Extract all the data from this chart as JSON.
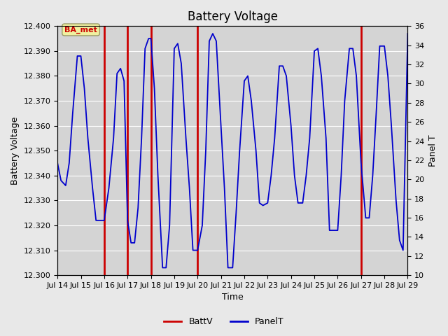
{
  "title": "Battery Voltage",
  "xlabel": "Time",
  "ylabel_left": "Battery Voltage",
  "ylabel_right": "Panel T",
  "ylim_left": [
    12.3,
    12.4
  ],
  "ylim_right": [
    10,
    36
  ],
  "yticks_left": [
    12.3,
    12.31,
    12.32,
    12.33,
    12.34,
    12.35,
    12.36,
    12.37,
    12.38,
    12.39,
    12.4
  ],
  "yticks_right": [
    10,
    12,
    14,
    16,
    18,
    20,
    22,
    24,
    26,
    28,
    30,
    32,
    34,
    36
  ],
  "xtick_labels": [
    "Jul 14",
    "Jul 15",
    "Jul 16",
    "Jul 17",
    "Jul 18",
    "Jul 19",
    "Jul 20",
    "Jul 21",
    "Jul 22",
    "Jul 23",
    "Jul 24",
    "Jul 25",
    "Jul 26",
    "Jul 27",
    "Jul 28",
    "Jul 29"
  ],
  "xlim": [
    0,
    15
  ],
  "red_vlines": [
    2,
    3,
    4,
    6,
    13
  ],
  "background_color": "#e8e8e8",
  "plot_bg_color": "#d4d4d4",
  "legend_label_batt": "BattV",
  "legend_label_panel": "PanelT",
  "annotation_text": "BA_met",
  "blue_line_color": "#0000cc",
  "red_line_color": "#cc0000",
  "title_fontsize": 12,
  "axis_label_fontsize": 9,
  "tick_fontsize": 8,
  "panel_t_x": [
    0.0,
    0.15,
    0.35,
    0.5,
    0.65,
    0.85,
    1.0,
    1.15,
    1.3,
    1.5,
    1.65,
    1.85,
    2.0,
    2.2,
    2.4,
    2.55,
    2.7,
    2.85,
    3.0,
    3.15,
    3.3,
    3.45,
    3.6,
    3.75,
    3.9,
    4.0,
    4.15,
    4.3,
    4.5,
    4.65,
    4.8,
    5.0,
    5.15,
    5.3,
    5.5,
    5.65,
    5.8,
    6.0,
    6.2,
    6.35,
    6.5,
    6.65,
    6.8,
    7.0,
    7.15,
    7.3,
    7.5,
    7.65,
    7.8,
    8.0,
    8.15,
    8.3,
    8.5,
    8.65,
    8.8,
    9.0,
    9.15,
    9.3,
    9.5,
    9.65,
    9.8,
    10.0,
    10.15,
    10.3,
    10.5,
    10.65,
    10.8,
    11.0,
    11.15,
    11.3,
    11.5,
    11.65,
    11.8,
    12.0,
    12.15,
    12.3,
    12.5,
    12.65,
    12.8,
    13.0,
    13.2,
    13.35,
    13.5,
    13.65,
    13.8,
    14.0,
    14.15,
    14.3,
    14.5,
    14.65,
    14.8,
    15.0
  ],
  "panel_t_y": [
    12.345,
    12.338,
    12.336,
    12.345,
    12.365,
    12.388,
    12.388,
    12.375,
    12.355,
    12.335,
    12.322,
    12.322,
    12.322,
    12.335,
    12.355,
    12.381,
    12.383,
    12.378,
    12.322,
    12.313,
    12.313,
    12.327,
    12.355,
    12.391,
    12.395,
    12.395,
    12.375,
    12.34,
    12.303,
    12.303,
    12.32,
    12.391,
    12.393,
    12.385,
    12.355,
    12.335,
    12.31,
    12.31,
    12.32,
    12.35,
    12.394,
    12.397,
    12.394,
    12.36,
    12.335,
    12.303,
    12.303,
    12.325,
    12.35,
    12.378,
    12.38,
    12.37,
    12.35,
    12.329,
    12.328,
    12.329,
    12.34,
    12.355,
    12.384,
    12.384,
    12.38,
    12.36,
    12.34,
    12.329,
    12.329,
    12.34,
    12.355,
    12.39,
    12.391,
    12.38,
    12.355,
    12.318,
    12.318,
    12.318,
    12.34,
    12.37,
    12.391,
    12.391,
    12.38,
    12.345,
    12.323,
    12.323,
    12.34,
    12.365,
    12.392,
    12.392,
    12.38,
    12.36,
    12.33,
    12.314,
    12.31,
    12.397
  ]
}
